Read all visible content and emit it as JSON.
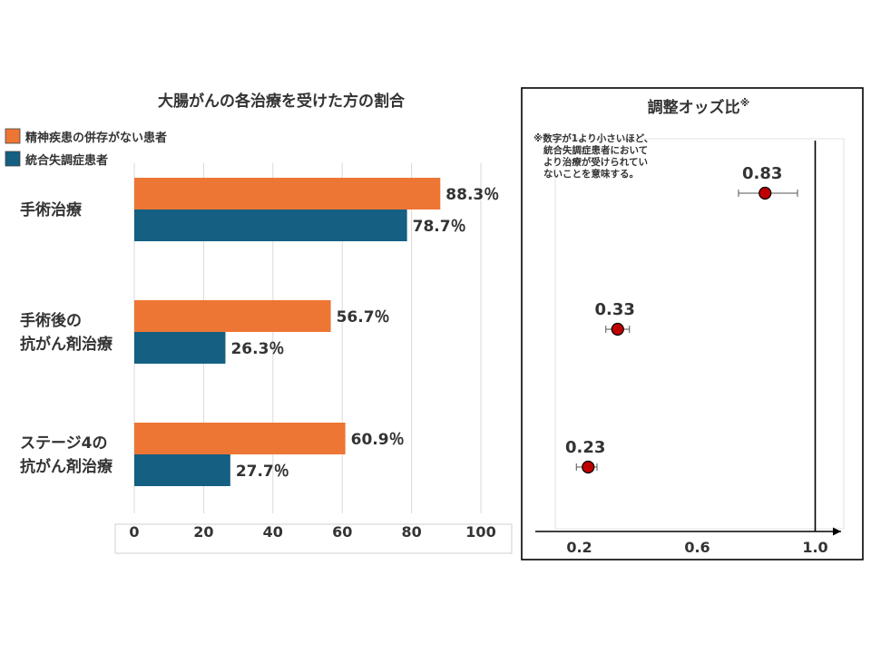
{
  "chart_data": [
    {
      "type": "bar",
      "orientation": "horizontal",
      "title": "大腸がんの各治療を受けた方の割合",
      "categories": [
        "手術治療",
        "手術後の\n抗がん剤治療",
        "ステージ4の\n抗がん剤治療"
      ],
      "series": [
        {
          "name": "精神疾患の併存がない患者",
          "values": [
            88.3,
            56.7,
            60.9
          ],
          "labels": [
            "88.3％",
            "56.7％",
            "60.9％"
          ]
        },
        {
          "name": "統合失調症患者",
          "values": [
            78.7,
            26.3,
            27.7
          ],
          "labels": [
            "78.7％",
            "26.3％",
            "27.7％"
          ]
        }
      ],
      "xlim": [
        0,
        100
      ],
      "xticks": [
        0,
        20,
        40,
        60,
        80,
        100
      ],
      "xtick_labels": [
        "0",
        "20",
        "40",
        "60",
        "80",
        "100"
      ],
      "grid": true,
      "legend_position": "top-left",
      "colors": [
        "#ED7634",
        "#145F82"
      ]
    },
    {
      "type": "scatter",
      "title": "調整オッズ比",
      "title_mark": "※",
      "note": "※数字が1より小さいほど、\n統合失調症患者において\nより治療が受けられてい\nないことを意味する。",
      "points": [
        {
          "x": 0.83,
          "ci": [
            0.74,
            0.94
          ],
          "label": "0.83"
        },
        {
          "x": 0.33,
          "ci": [
            0.29,
            0.37
          ],
          "label": "0.33"
        },
        {
          "x": 0.23,
          "ci": [
            0.19,
            0.26
          ],
          "label": "0.23"
        }
      ],
      "xlim": [
        0.1,
        1.1
      ],
      "xticks": [
        0.2,
        0.6,
        1.0
      ],
      "xtick_labels": [
        "0.2",
        "0.6",
        "1.0"
      ],
      "reference_line": 1.0,
      "point_color": "#C00000"
    }
  ]
}
